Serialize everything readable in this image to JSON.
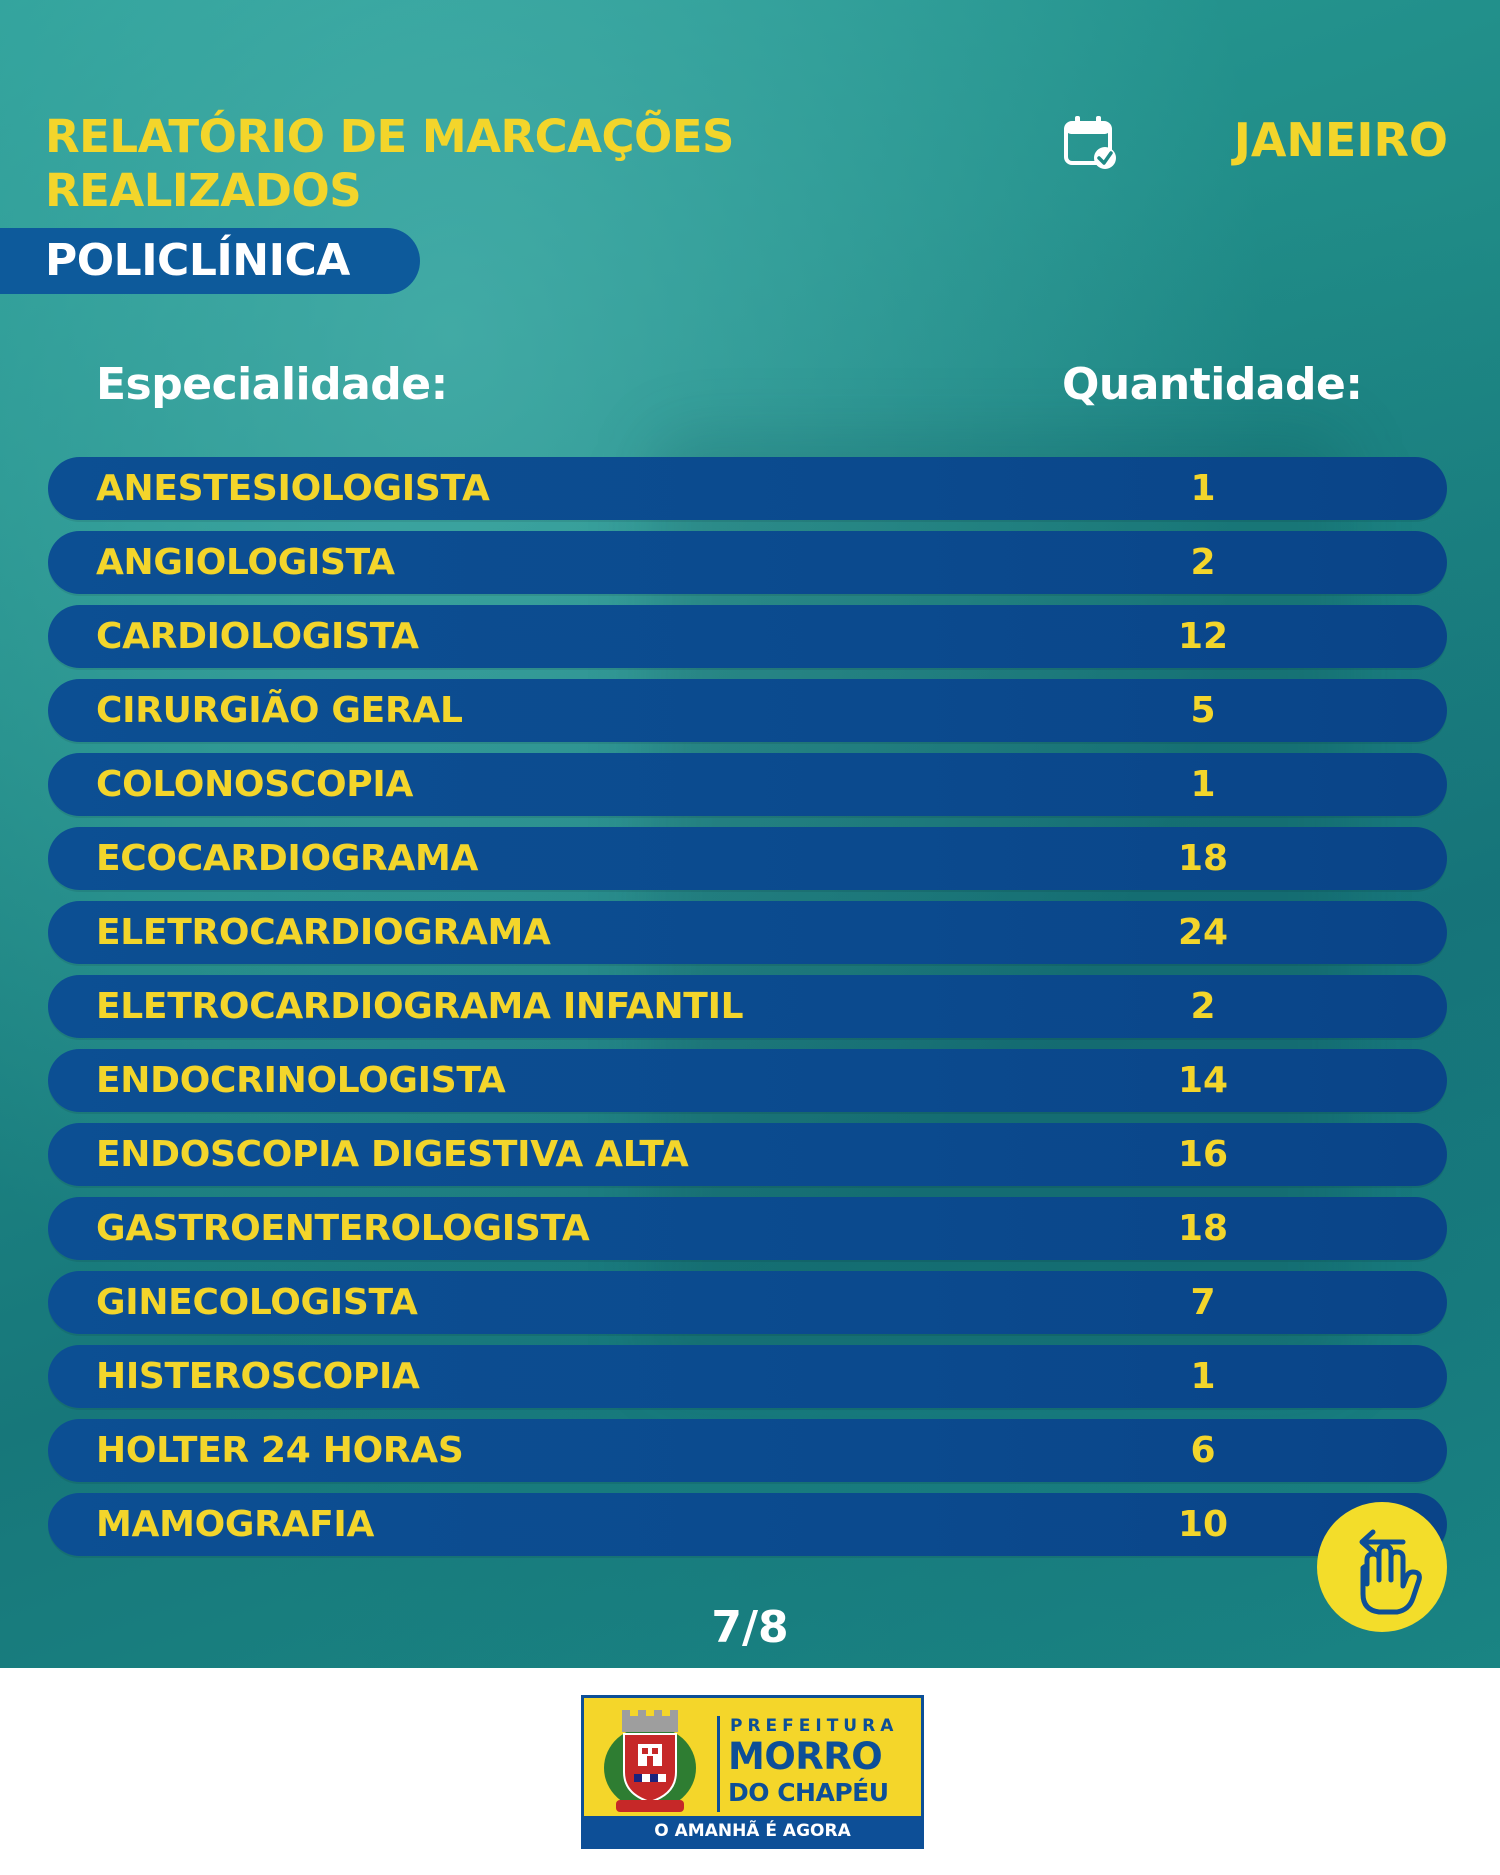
{
  "header": {
    "title_line1": "RELATÓRIO DE MARCAÇÕES",
    "title_line2": "REALIZADOS",
    "tag": "POLICLÍNICA",
    "month": "JANEIRO",
    "calendar_icon": "calendar-check-icon"
  },
  "table": {
    "col_specialty": "Especialidade:",
    "col_quantity": "Quantidade:",
    "rows": [
      {
        "name": "ANESTESIOLOGISTA",
        "qty": "1"
      },
      {
        "name": "ANGIOLOGISTA",
        "qty": "2"
      },
      {
        "name": "CARDIOLOGISTA",
        "qty": "12"
      },
      {
        "name": "CIRURGIÃO GERAL",
        "qty": "5"
      },
      {
        "name": "COLONOSCOPIA",
        "qty": "1"
      },
      {
        "name": "ECOCARDIOGRAMA",
        "qty": "18"
      },
      {
        "name": "ELETROCARDIOGRAMA",
        "qty": "24"
      },
      {
        "name": "ELETROCARDIOGRAMA INFANTIL",
        "qty": "2"
      },
      {
        "name": "ENDOCRINOLOGISTA",
        "qty": "14"
      },
      {
        "name": "ENDOSCOPIA DIGESTIVA ALTA",
        "qty": "16"
      },
      {
        "name": "GASTROENTEROLOGISTA",
        "qty": "18"
      },
      {
        "name": "GINECOLOGISTA",
        "qty": "7"
      },
      {
        "name": "HISTEROSCOPIA",
        "qty": "1"
      },
      {
        "name": "HOLTER 24 HORAS",
        "qty": "6"
      },
      {
        "name": "MAMOGRAFIA",
        "qty": "10"
      }
    ]
  },
  "pagination": {
    "label": "7/8"
  },
  "swipe_icon": "swipe-hand-icon",
  "footer": {
    "logo_line1": "PREFEITURA",
    "logo_line2": "MORRO",
    "logo_line3": "DO CHAPÉU",
    "slogan": "O AMANHÃ É AGORA",
    "crest_icon": "municipal-crest-icon"
  },
  "colors": {
    "background_teal": "#1f8a86",
    "row_blue": "#0c4f93",
    "accent_yellow": "#f3d52b",
    "text_white": "#ffffff"
  }
}
